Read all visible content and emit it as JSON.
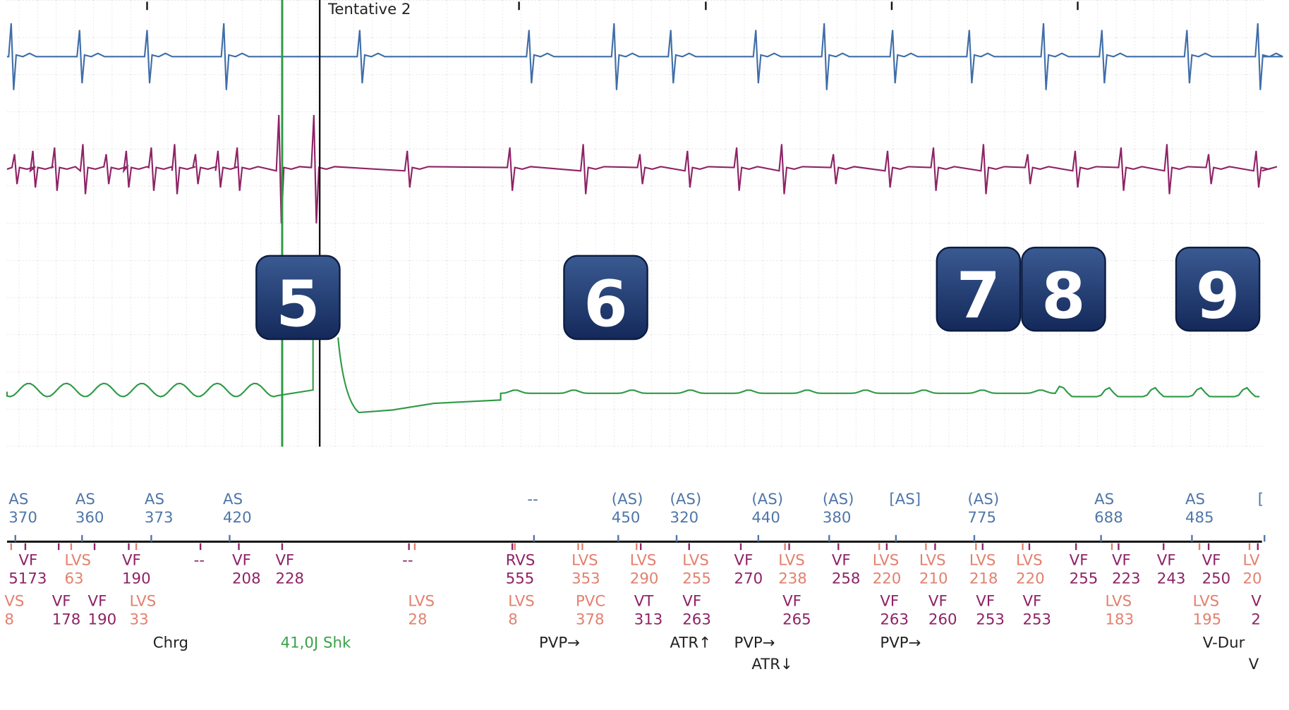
{
  "header": {
    "title": "Tentative 2"
  },
  "badges": [
    "5",
    "6",
    "7",
    "8",
    "9"
  ],
  "atrial_markers": [
    {
      "label": "AS",
      "interval": "370"
    },
    {
      "label": "AS",
      "interval": "360"
    },
    {
      "label": "AS",
      "interval": "373"
    },
    {
      "label": "AS",
      "interval": "420"
    },
    {
      "label": "--"
    },
    {
      "label": "(AS)",
      "interval": "450"
    },
    {
      "label": "(AS)",
      "interval": "320"
    },
    {
      "label": "(AS)",
      "interval": "440"
    },
    {
      "label": "(AS)",
      "interval": "380"
    },
    {
      "label": "[AS]"
    },
    {
      "label": "(AS)",
      "interval": "775"
    },
    {
      "label": "AS",
      "interval": "688"
    },
    {
      "label": "AS",
      "interval": "485"
    },
    {
      "label": "["
    }
  ],
  "ventricular_markers": [
    {
      "label": "VF",
      "interval": "5173"
    },
    {
      "label": "LVS",
      "interval": "63"
    },
    {
      "label": "VF",
      "interval": "190"
    },
    {
      "label": "--"
    },
    {
      "label": "VF",
      "interval": "208"
    },
    {
      "label": "VF",
      "interval": "228"
    },
    {
      "label": "--"
    },
    {
      "label": "RVS",
      "interval": "555"
    },
    {
      "label": "LVS",
      "interval": "353"
    },
    {
      "label": "LVS",
      "interval": "290"
    },
    {
      "label": "LVS",
      "interval": "255"
    },
    {
      "label": "VF",
      "interval": "270"
    },
    {
      "label": "LVS",
      "interval": "238"
    },
    {
      "label": "VF",
      "interval": "258"
    },
    {
      "label": "LVS",
      "interval": "220"
    },
    {
      "label": "LVS",
      "interval": "210"
    },
    {
      "label": "LVS",
      "interval": "218"
    },
    {
      "label": "LVS",
      "interval": "220"
    },
    {
      "label": "VF",
      "interval": "255"
    },
    {
      "label": "VF",
      "interval": "223"
    },
    {
      "label": "VF",
      "interval": "243"
    },
    {
      "label": "VF",
      "interval": "250"
    },
    {
      "label": "LV",
      "interval": "20"
    }
  ],
  "ventricular_markers_2": [
    {
      "label": "VS",
      "interval": "8"
    },
    {
      "label": "VF",
      "interval": "178"
    },
    {
      "label": "VF",
      "interval": "190"
    },
    {
      "label": "LVS",
      "interval": "33"
    },
    {
      "label": "LVS",
      "interval": "28"
    },
    {
      "label": "LVS",
      "interval": "8"
    },
    {
      "label": "PVC",
      "interval": "378"
    },
    {
      "label": "VT",
      "interval": "313"
    },
    {
      "label": "VF",
      "interval": "263"
    },
    {
      "label": "VF",
      "interval": "265"
    },
    {
      "label": "VF",
      "interval": "263"
    },
    {
      "label": "VF",
      "interval": "260"
    },
    {
      "label": "VF",
      "interval": "253"
    },
    {
      "label": "VF",
      "interval": "253"
    },
    {
      "label": "LVS",
      "interval": "183"
    },
    {
      "label": "LVS",
      "interval": "195"
    },
    {
      "label": "V",
      "interval": "2"
    }
  ],
  "events": [
    "Chrg",
    "41,0J Shk",
    "PVP→",
    "ATR↑",
    "PVP→",
    "PVP→",
    "V-Dur",
    "ATR↓",
    "V"
  ]
}
